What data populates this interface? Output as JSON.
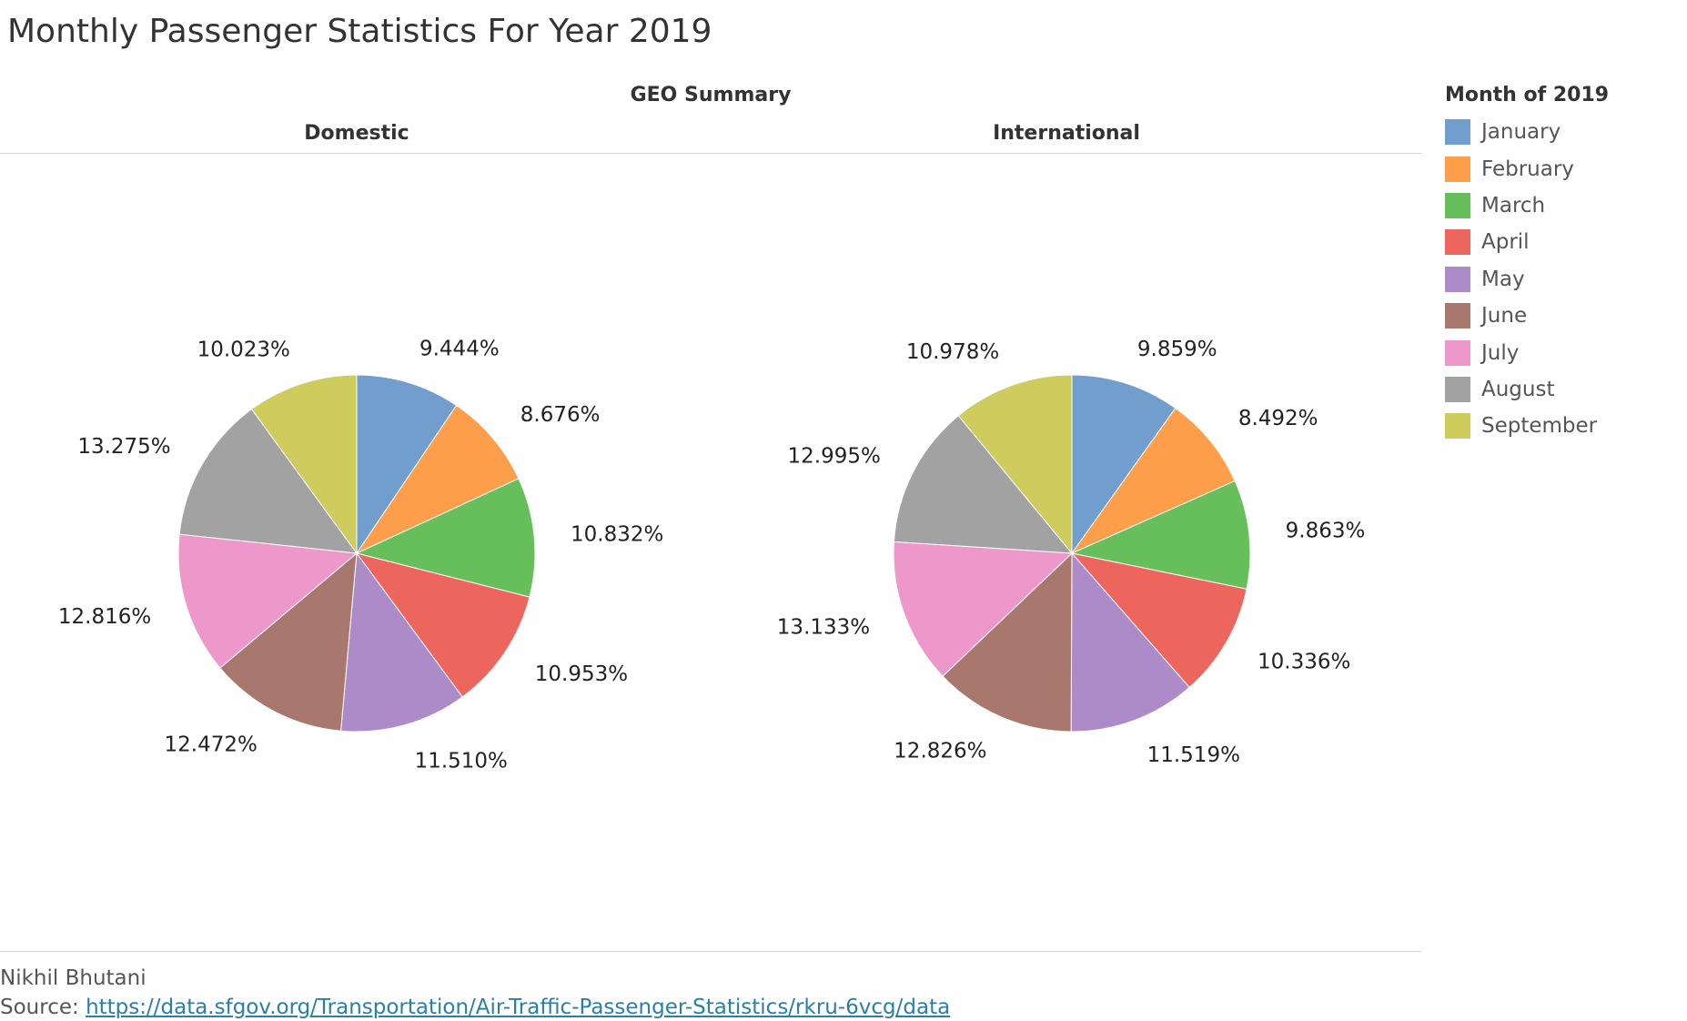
{
  "title": "Monthly Passenger Statistics For Year 2019",
  "panel_header": "GEO Summary",
  "legend": {
    "title": "Month of 2019",
    "items": [
      {
        "label": "January",
        "color": "#729ece"
      },
      {
        "label": "February",
        "color": "#ff9e4a"
      },
      {
        "label": "March",
        "color": "#67bf5c"
      },
      {
        "label": "April",
        "color": "#ed665d"
      },
      {
        "label": "May",
        "color": "#ad8bc9"
      },
      {
        "label": "June",
        "color": "#a8786e"
      },
      {
        "label": "July",
        "color": "#ed97ca"
      },
      {
        "label": "August",
        "color": "#a2a2a2"
      },
      {
        "label": "September",
        "color": "#cdcc5d"
      }
    ]
  },
  "chart_data": [
    {
      "type": "pie",
      "title": "Domestic",
      "categories": [
        "January",
        "February",
        "March",
        "April",
        "May",
        "June",
        "July",
        "August",
        "September"
      ],
      "values": [
        9.444,
        8.676,
        10.832,
        10.953,
        11.51,
        12.472,
        12.816,
        13.275,
        10.023
      ],
      "labels": [
        "9.444%",
        "8.676%",
        "10.832%",
        "10.953%",
        "11.510%",
        "12.472%",
        "12.816%",
        "13.275%",
        "10.023%"
      ]
    },
    {
      "type": "pie",
      "title": "International",
      "categories": [
        "January",
        "February",
        "March",
        "April",
        "May",
        "June",
        "July",
        "August",
        "September"
      ],
      "values": [
        9.859,
        8.492,
        9.863,
        10.336,
        11.519,
        12.826,
        13.133,
        12.995,
        10.978
      ],
      "labels": [
        "9.859%",
        "8.492%",
        "9.863%",
        "10.336%",
        "11.519%",
        "12.826%",
        "13.133%",
        "12.995%",
        "10.978%"
      ]
    }
  ],
  "footer": {
    "author": "Nikhil Bhutani",
    "source_prefix": "Source: ",
    "source_link": "https://data.sfgov.org/Transportation/Air-Traffic-Passenger-Statistics/rkru-6vcg/data"
  }
}
